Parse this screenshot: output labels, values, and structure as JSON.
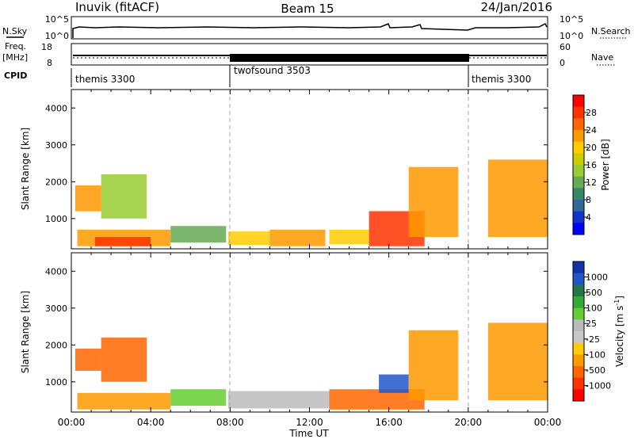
{
  "header": {
    "station": "Inuvik (fitACF)",
    "beam": "Beam 15",
    "date": "24/Jan/2016"
  },
  "top_panels": {
    "nsky_label": "N.Sky",
    "nsearch_label": "N.Search",
    "nave_label": "Nave",
    "freq_label": "Freq.",
    "freq_unit": "[MHz]",
    "cpid_label": "CPID",
    "noise_ticks_left": [
      "10^5",
      "10^0"
    ],
    "noise_ticks_right": [
      "10^5",
      "10^0"
    ],
    "freq_ticks": [
      "18",
      "8"
    ],
    "nave_ticks": [
      "60",
      "0"
    ],
    "cpid_segments": [
      {
        "name": "themis 3300",
        "start_hour": 0,
        "end_hour": 8
      },
      {
        "name": "twofsound 3503",
        "start_hour": 8,
        "end_hour": 20
      },
      {
        "name": "themis 3300",
        "start_hour": 20,
        "end_hour": 24
      }
    ]
  },
  "colorbars": {
    "power": {
      "label": "Power [dB]",
      "ticks": [
        "28",
        "24",
        "20",
        "16",
        "12",
        "8",
        "4"
      ],
      "colors": [
        "#ff0000",
        "#ff3300",
        "#ff6600",
        "#ff9900",
        "#ffcc00",
        "#cccc00",
        "#99cc33",
        "#66aa55",
        "#338866",
        "#336699",
        "#1133cc",
        "#0000ff"
      ]
    },
    "velocity": {
      "label": "Velocity [m s",
      "label_sup": "-1",
      "label_end": "]",
      "ticks": [
        "1000",
        "500",
        "100",
        "25",
        "-25",
        "-100",
        "-500",
        "-1000"
      ],
      "colors": [
        "#1133aa",
        "#2255cc",
        "#227744",
        "#33aa33",
        "#66cc33",
        "#bbbbbb",
        "#c8c8c8",
        "#ffcc00",
        "#ff9900",
        "#ff6600",
        "#ff3300",
        "#ff0000"
      ]
    }
  },
  "chart_data": [
    {
      "type": "heatmap",
      "title": "Power",
      "xlabel": "",
      "ylabel": "Slant Range [km]",
      "y_ticks": [
        1000,
        2000,
        3000,
        4000
      ],
      "ylim": [
        180,
        4500
      ],
      "xlim_hours": [
        0,
        24
      ],
      "value_label": "Power [dB]",
      "cells": [
        {
          "t": [
            0.3,
            5.0
          ],
          "r": [
            250,
            700
          ],
          "power": 24
        },
        {
          "t": [
            1.2,
            4.0
          ],
          "r": [
            250,
            500
          ],
          "power": 28
        },
        {
          "t": [
            0.2,
            1.5
          ],
          "r": [
            1200,
            1900
          ],
          "power": 24
        },
        {
          "t": [
            1.5,
            3.8
          ],
          "r": [
            1000,
            2200
          ],
          "power": 16
        },
        {
          "t": [
            5.0,
            7.8
          ],
          "r": [
            350,
            800
          ],
          "power": 12
        },
        {
          "t": [
            7.9,
            10.0
          ],
          "r": [
            280,
            650
          ],
          "power": 20
        },
        {
          "t": [
            10.0,
            12.8
          ],
          "r": [
            250,
            700
          ],
          "power": 24
        },
        {
          "t": [
            13.0,
            15.0
          ],
          "r": [
            300,
            700
          ],
          "power": 20
        },
        {
          "t": [
            15.0,
            17.8
          ],
          "r": [
            250,
            1200
          ],
          "power": 28
        },
        {
          "t": [
            17.0,
            19.5
          ],
          "r": [
            500,
            2400
          ],
          "power": 24
        },
        {
          "t": [
            21.0,
            24.0
          ],
          "r": [
            500,
            2600
          ],
          "power": 24
        }
      ]
    },
    {
      "type": "heatmap",
      "title": "Velocity",
      "xlabel": "Time UT",
      "ylabel": "Slant Range [km]",
      "x_ticks": [
        "00:00",
        "04:00",
        "08:00",
        "12:00",
        "16:00",
        "20:00",
        "00:00"
      ],
      "y_ticks": [
        1000,
        2000,
        3000,
        4000
      ],
      "ylim": [
        180,
        4500
      ],
      "xlim_hours": [
        0,
        24
      ],
      "value_label": "Velocity [m s-1]",
      "cells": [
        {
          "t": [
            0.3,
            5.0
          ],
          "r": [
            250,
            700
          ],
          "velocity": -100
        },
        {
          "t": [
            0.2,
            1.5
          ],
          "r": [
            1300,
            1900
          ],
          "velocity": -500
        },
        {
          "t": [
            1.5,
            3.8
          ],
          "r": [
            1000,
            2200
          ],
          "velocity": -500
        },
        {
          "t": [
            5.0,
            7.8
          ],
          "r": [
            350,
            800
          ],
          "velocity": 25
        },
        {
          "t": [
            7.9,
            13.0
          ],
          "r": [
            280,
            750
          ],
          "velocity": -25
        },
        {
          "t": [
            13.0,
            17.8
          ],
          "r": [
            250,
            800
          ],
          "velocity": -500
        },
        {
          "t": [
            15.5,
            17.0
          ],
          "r": [
            700,
            1200
          ],
          "velocity": 500
        },
        {
          "t": [
            17.0,
            19.5
          ],
          "r": [
            500,
            2400
          ],
          "velocity": -100
        },
        {
          "t": [
            21.0,
            24.0
          ],
          "r": [
            500,
            2600
          ],
          "velocity": -100
        }
      ]
    }
  ]
}
